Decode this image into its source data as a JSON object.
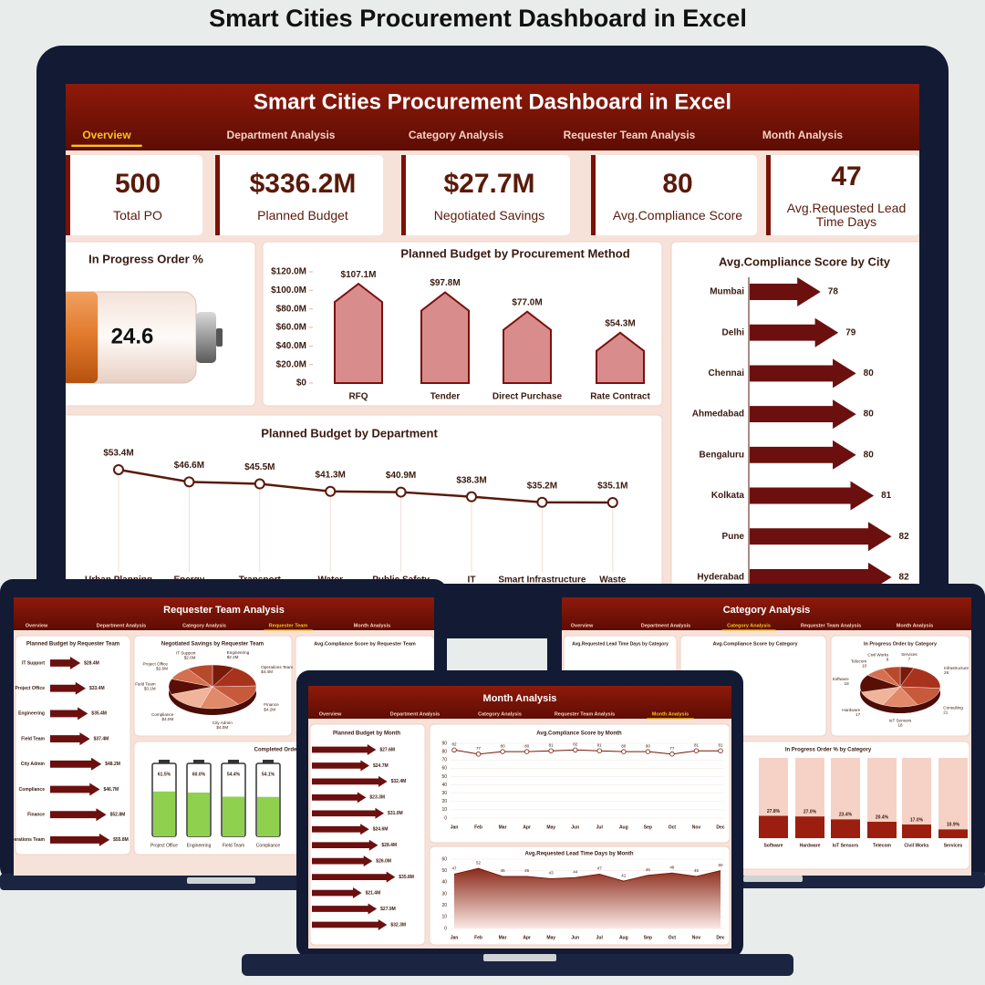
{
  "page_title": "Smart Cities Procurement Dashboard in Excel",
  "main": {
    "title": "Smart Cities Procurement Dashboard in Excel",
    "tabs": [
      "Overview",
      "Department Analysis",
      "Category Analysis",
      "Requester Team Analysis",
      "Month Analysis"
    ],
    "active_tab": 0,
    "kpis": [
      {
        "value": "500",
        "label": "Total PO"
      },
      {
        "value": "$336.2M",
        "label": "Planned Budget"
      },
      {
        "value": "$27.7M",
        "label": "Negotiated Savings"
      },
      {
        "value": "80",
        "label": "Avg.Compliance Score"
      },
      {
        "value": "47",
        "label": "Avg.Requested Lead Time Days"
      }
    ],
    "in_progress": {
      "title": "In Progress Order %",
      "value": 24.6,
      "ylim": [
        0,
        100
      ]
    },
    "method_chart": {
      "type": "bar",
      "title": "Planned Budget by Procurement Method",
      "categories": [
        "RFQ",
        "Tender",
        "Direct Purchase",
        "Rate Contract"
      ],
      "values": [
        107.1,
        97.8,
        77.0,
        54.3
      ],
      "value_labels": [
        "$107.1M",
        "$97.8M",
        "$77.0M",
        "$54.3M"
      ],
      "color": "#d98c8c",
      "ylim": [
        0,
        120
      ],
      "yticks": [
        {
          "value": 0,
          "label": "$0"
        },
        {
          "value": 20,
          "label": "$20.0M"
        },
        {
          "value": 40,
          "label": "$40.0M"
        },
        {
          "value": 60,
          "label": "$60.0M"
        },
        {
          "value": 80,
          "label": "$80.0M"
        },
        {
          "value": 100,
          "label": "$100.0M"
        },
        {
          "value": 120,
          "label": "$120.0M"
        }
      ]
    },
    "department_chart": {
      "type": "line",
      "title": "Planned Budget by Department",
      "categories": [
        "Urban Planning",
        "Energy",
        "Transport",
        "Water",
        "Public Safety",
        "IT",
        "Smart Infrastructure",
        "Waste"
      ],
      "values": [
        53.4,
        46.6,
        45.5,
        41.3,
        40.9,
        38.3,
        35.2,
        35.1
      ],
      "value_labels": [
        "$53.4M",
        "$46.6M",
        "$45.5M",
        "$41.3M",
        "$40.9M",
        "$38.3M",
        "$35.2M",
        "$35.1M"
      ],
      "color": "#5a1a0a",
      "ylim": [
        0,
        60
      ]
    },
    "city_chart": {
      "type": "hbar",
      "title": "Avg.Compliance Score by City",
      "categories": [
        "Mumbai",
        "Delhi",
        "Chennai",
        "Ahmedabad",
        "Bengaluru",
        "Kolkata",
        "Pune",
        "Hyderabad"
      ],
      "values": [
        78,
        79,
        80,
        80,
        80,
        81,
        82,
        82
      ],
      "color": "#6b0f0f",
      "xlim": [
        74,
        83
      ]
    }
  },
  "requester": {
    "title": "Requester Team Analysis",
    "tabs": [
      "Overview",
      "Department Analysis",
      "Category Analysis",
      "Requester Team",
      "Month Analysis"
    ],
    "active_tab": 3,
    "budget_chart": {
      "type": "hbar",
      "title": "Planned Budget by Requester Team",
      "categories": [
        "IT Support",
        "Project Office",
        "Engineering",
        "Field Team",
        "City Admin",
        "Compliance",
        "Finance",
        "Operations Team"
      ],
      "values": [
        28.4,
        33.4,
        35.4,
        37.4,
        48.2,
        46.7,
        52.8,
        55.8
      ],
      "value_labels": [
        "$28.4M",
        "$33.4M",
        "$35.4M",
        "$37.4M",
        "$48.2M",
        "$46.7M",
        "$52.8M",
        "$55.8M"
      ],
      "color": "#6b0f0f",
      "xlim": [
        0,
        60
      ]
    },
    "savings_chart": {
      "type": "pie",
      "title": "Negotiated Savings by Requester Team",
      "categories": [
        "Engineering",
        "Operations Team",
        "Finance",
        "City Admin",
        "Compliance",
        "Field Team",
        "Project Office",
        "IT Support"
      ],
      "values": [
        2.2,
        4.4,
        4.2,
        4.0,
        4.0,
        3.1,
        2.6,
        2.6
      ],
      "value_labels": [
        "$2.2M",
        "$4.4M",
        "$4.2M",
        "$4.0M",
        "$4.0M",
        "$3.1M",
        "$2.6M",
        "$2.6M"
      ]
    },
    "compliance_title": "Avg.Compliance Score by Requester Team",
    "completed_chart": {
      "type": "battery",
      "title": "Completed Order % by",
      "categories": [
        "Project Office",
        "Engineering",
        "Field Team",
        "Compliance"
      ],
      "values": [
        61.5,
        60.0,
        54.4,
        54.1
      ],
      "value_labels": [
        "61.5%",
        "60.0%",
        "54.4%",
        "54.1%"
      ],
      "color": "#8fd14f",
      "ylim": [
        0,
        100
      ]
    }
  },
  "category": {
    "title": "Category Analysis",
    "tabs": [
      "Overview",
      "Department Analysis",
      "Category Analysis",
      "Requester Team Analysis",
      "Month Analysis"
    ],
    "active_tab": 2,
    "lead_title": "Avg.Requested Lead Time Days by Category",
    "compliance_title": "Avg.Compliance Score by Category",
    "order_pie": {
      "type": "pie",
      "title": "In Progress Order by Category",
      "categories": [
        "Services",
        "Infrastructure",
        "Consulting",
        "IoT Sensors",
        "Hardware",
        "Software",
        "Telecom",
        "Civil Works"
      ],
      "values": [
        7,
        26,
        21,
        18,
        17,
        18,
        10,
        9
      ]
    },
    "order_pct_chart": {
      "type": "column",
      "title": "In Progress Order % by Category",
      "categories": [
        "Software",
        "Hardware",
        "IoT Sensors",
        "Telecom",
        "Civil Works",
        "Services"
      ],
      "values": [
        27.8,
        27.0,
        23.4,
        20.4,
        17.0,
        10.9
      ],
      "value_labels": [
        "27.8%",
        "27.0%",
        "23.4%",
        "20.4%",
        "17.0%",
        "10.9%"
      ],
      "color": "#9b1e0e",
      "ylim": [
        0,
        100
      ]
    }
  },
  "month": {
    "title": "Month Analysis",
    "tabs": [
      "Overview",
      "Department Analysis",
      "Category Analysis",
      "Requester Team Analysis",
      "Month Analysis"
    ],
    "active_tab": 4,
    "budget_chart": {
      "type": "hbar",
      "title": "Planned Budget by Month",
      "values": [
        27.6,
        24.7,
        32.4,
        23.3,
        31.0,
        24.6,
        28.4,
        26.0,
        35.8,
        21.4,
        27.9,
        32.3
      ],
      "value_labels": [
        "$27.6M",
        "$24.7M",
        "$32.4M",
        "$23.3M",
        "$31.0M",
        "$24.6M",
        "$28.4M",
        "$26.0M",
        "$35.8M",
        "$21.4M",
        "$27.9M",
        "$32.3M"
      ],
      "color": "#6b0f0f",
      "xlim": [
        0,
        40
      ]
    },
    "compliance_chart": {
      "type": "line",
      "title": "Avg.Compliance Score by Month",
      "categories": [
        "Jan",
        "Feb",
        "Mar",
        "Apr",
        "May",
        "Jun",
        "Jul",
        "Aug",
        "Sep",
        "Oct",
        "Nov",
        "Dec"
      ],
      "values": [
        82,
        77,
        80,
        80,
        81,
        82,
        81,
        80,
        80,
        77,
        81,
        81
      ],
      "color": "#7a1a0a",
      "ylim": [
        0,
        90
      ],
      "yticks": [
        0,
        10,
        20,
        30,
        40,
        50,
        60,
        70,
        80,
        90
      ]
    },
    "lead_chart": {
      "type": "area",
      "title": "Avg.Requested Lead Time Days by Month",
      "categories": [
        "Jan",
        "Feb",
        "Mar",
        "Apr",
        "May",
        "Jun",
        "Jul",
        "Aug",
        "Sep",
        "Oct",
        "Nov",
        "Dec"
      ],
      "values": [
        47,
        52,
        45,
        45,
        43,
        44,
        47,
        41,
        46,
        48,
        45,
        50
      ],
      "color": "#7a1a0a",
      "ylim": [
        0,
        60
      ],
      "yticks": [
        0,
        10,
        20,
        30,
        40,
        50,
        60
      ]
    }
  }
}
